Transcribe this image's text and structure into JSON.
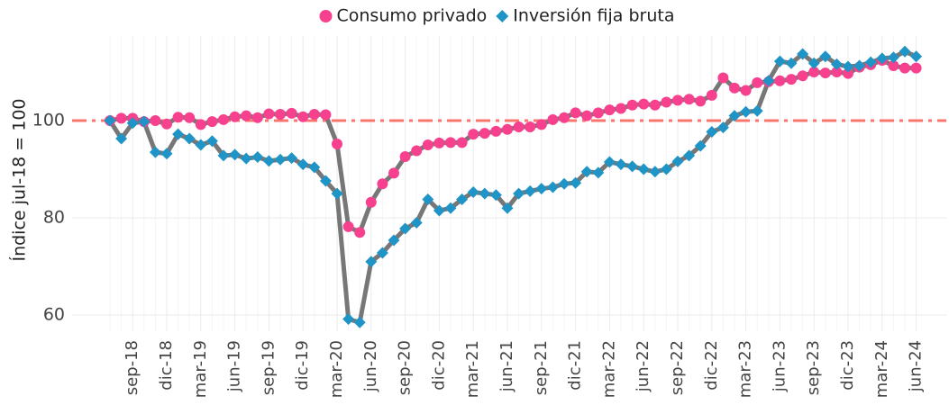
{
  "chart_data": {
    "type": "line",
    "y_label": "Índice jul-18 = 100",
    "categories": [
      null,
      null,
      "sep-18",
      null,
      null,
      "dic-18",
      null,
      null,
      "mar-19",
      null,
      null,
      "jun-19",
      null,
      null,
      "sep-19",
      null,
      null,
      "dic-19",
      null,
      null,
      "mar-20",
      null,
      null,
      "jun-20",
      null,
      null,
      "sep-20",
      null,
      null,
      "dic-20",
      null,
      null,
      "mar-21",
      null,
      null,
      "jun-21",
      null,
      null,
      "sep-21",
      null,
      null,
      "dic-21",
      null,
      null,
      "mar-22",
      null,
      null,
      "jun-22",
      null,
      null,
      "sep-22",
      null,
      null,
      "dic-22",
      null,
      null,
      "mar-23",
      null,
      null,
      "jun-23",
      null,
      null,
      "sep-23",
      null,
      null,
      "dic-23",
      null,
      null,
      "mar-24",
      null,
      null,
      "jun-24"
    ],
    "series": [
      {
        "name": "Consumo privado",
        "color": "#f7418f",
        "marker": "circle",
        "values": [
          100,
          100.5,
          100.5,
          99.8,
          100,
          99.3,
          100.7,
          100.6,
          99.2,
          99.8,
          100.2,
          100.8,
          101,
          100.6,
          101.4,
          101.3,
          101.5,
          100.8,
          101.3,
          101.2,
          95.2,
          78.2,
          77,
          83.2,
          87,
          89.2,
          92.6,
          93.8,
          95,
          95.4,
          95.5,
          95.5,
          97.2,
          97.4,
          97.8,
          98.2,
          98.7,
          98.7,
          99.2,
          100.2,
          100.6,
          101.6,
          101,
          101.6,
          102.2,
          102.5,
          103.2,
          103.4,
          103.2,
          103.8,
          104.2,
          104.4,
          104,
          105.2,
          108.8,
          106.7,
          106.2,
          107.8,
          108,
          108.2,
          108.5,
          109.2,
          110,
          109.8,
          110,
          109.7,
          111,
          111.5,
          112.4,
          111.3,
          110.8,
          110.8
        ]
      },
      {
        "name": "Inversión fija bruta",
        "color": "#1f94c6",
        "marker": "diamond",
        "values": [
          100,
          96.3,
          99.5,
          99.8,
          93.5,
          93.2,
          97.2,
          96.3,
          95,
          95.8,
          92.8,
          93,
          92.2,
          92.5,
          91.7,
          92,
          92.3,
          91,
          90.4,
          87.6,
          85,
          59.2,
          58.5,
          71,
          72.8,
          75.4,
          77.8,
          79,
          83.8,
          81.5,
          82,
          83.8,
          85.3,
          85,
          84.7,
          82,
          85,
          85.5,
          86,
          86.3,
          87,
          87.2,
          89.5,
          89.3,
          91.5,
          91,
          90.6,
          90,
          89.5,
          90,
          91.6,
          92.8,
          94.8,
          97.7,
          98.6,
          101,
          101.8,
          102,
          108.2,
          112.2,
          111.8,
          113.7,
          111.8,
          113.2,
          111.6,
          111.1,
          111.3,
          112,
          112.8,
          113,
          114.2,
          113.2
        ]
      }
    ],
    "line_color": "#777777",
    "reference_line": {
      "value": 100,
      "color": "#f8766d"
    },
    "ylim": [
      56.7,
      117.4
    ],
    "yticks": [
      60,
      80,
      100
    ],
    "grid": true,
    "legend": "top"
  }
}
